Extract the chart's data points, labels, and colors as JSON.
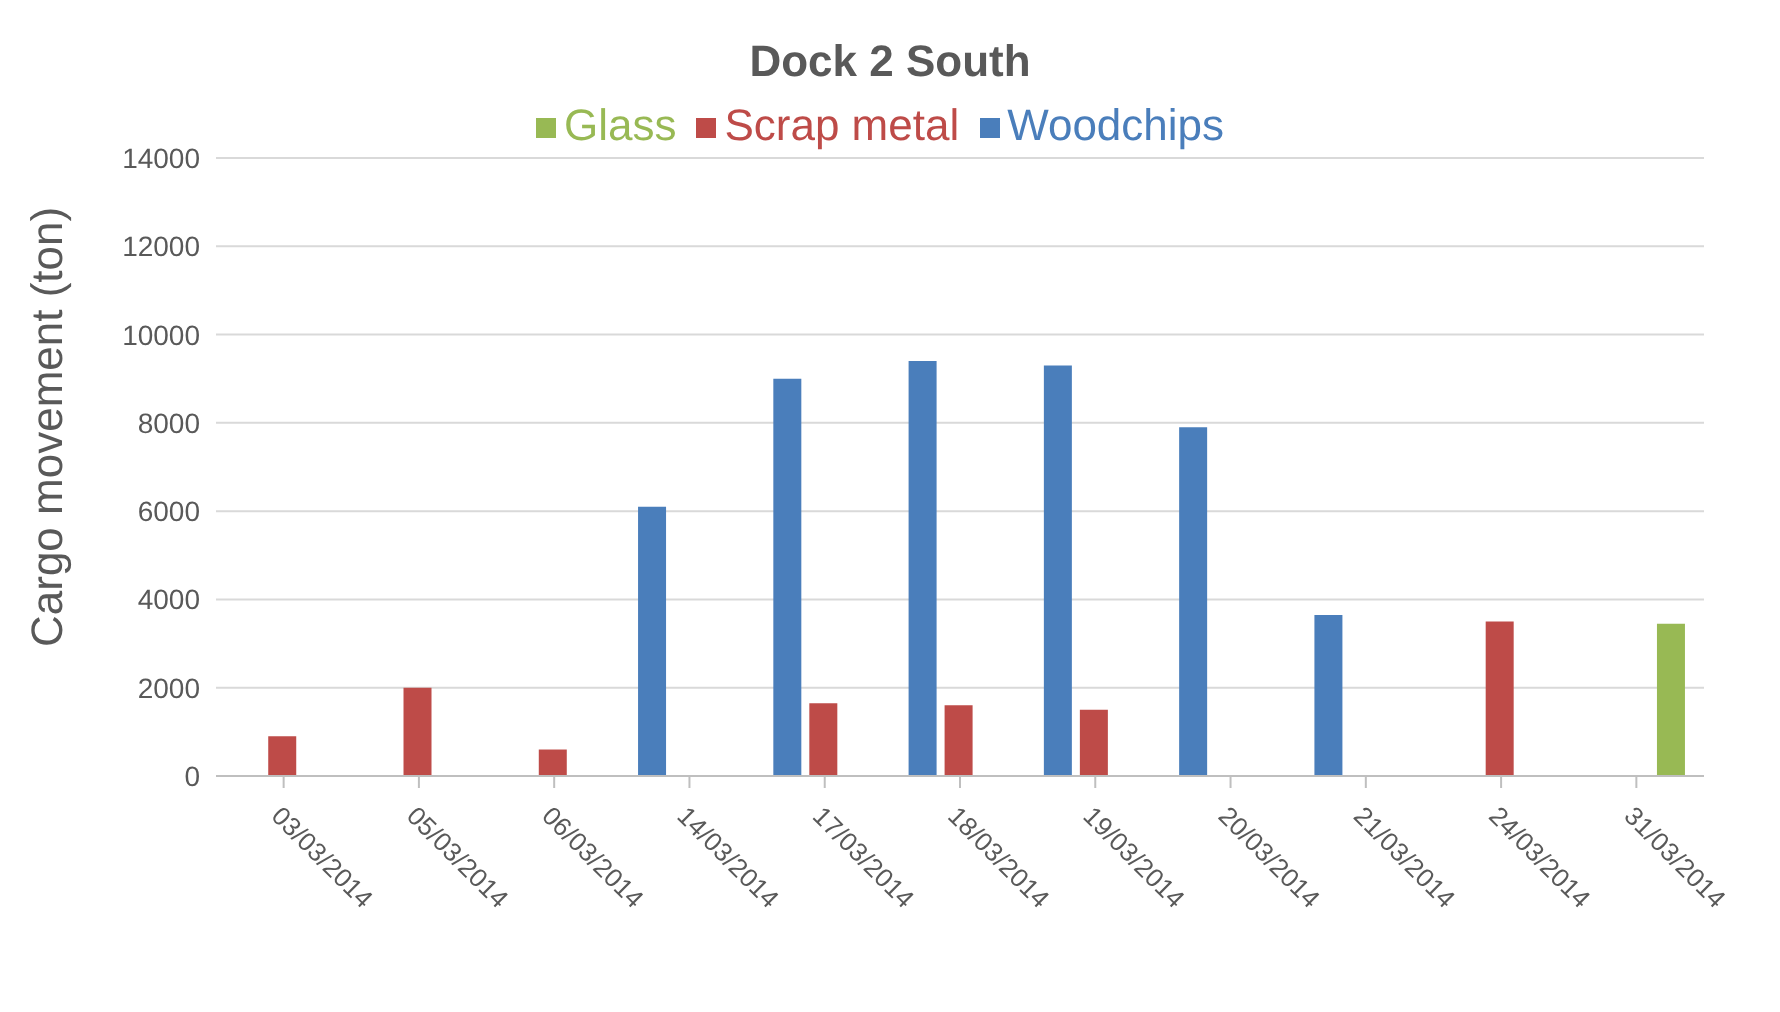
{
  "chart_data": {
    "type": "bar",
    "title": "Dock 2 South",
    "ylabel": "Cargo movement (ton)",
    "categories": [
      "03/03/2014",
      "05/03/2014",
      "06/03/2014",
      "14/03/2014",
      "17/03/2014",
      "18/03/2014",
      "19/03/2014",
      "20/03/2014",
      "21/03/2014",
      "24/03/2014",
      "31/03/2014"
    ],
    "series": [
      {
        "name": "Woodchips",
        "color": "#4a7ebb",
        "values": [
          null,
          null,
          null,
          6100,
          9000,
          9400,
          9300,
          7900,
          3650,
          null,
          null
        ]
      },
      {
        "name": "Scrap metal",
        "color": "#be4b48",
        "values": [
          900,
          2000,
          600,
          null,
          1650,
          1600,
          1500,
          null,
          null,
          3500,
          null
        ]
      },
      {
        "name": "Glass",
        "color": "#98b954",
        "values": [
          null,
          null,
          null,
          null,
          null,
          null,
          null,
          null,
          null,
          null,
          3450
        ]
      }
    ],
    "ylim": [
      0,
      14000
    ],
    "yticks": [
      0,
      2000,
      4000,
      6000,
      8000,
      10000,
      12000,
      14000
    ],
    "grid": "y",
    "legend": "top"
  }
}
